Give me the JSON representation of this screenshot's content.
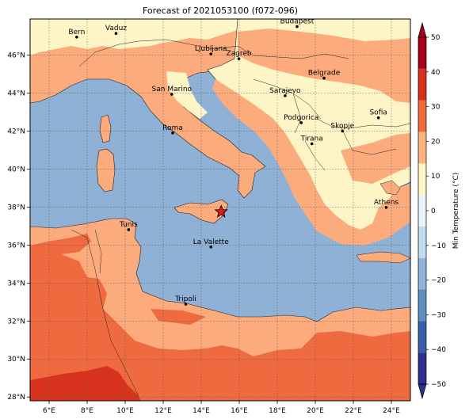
{
  "title": "Forecast of 2021053100 (f072-096)",
  "map": {
    "x_ticks": [
      "6°E",
      "8°E",
      "10°E",
      "12°E",
      "14°E",
      "16°E",
      "18°E",
      "20°E",
      "22°E",
      "24°E"
    ],
    "y_ticks": [
      "46°N",
      "44°N",
      "42°N",
      "40°N",
      "38°N",
      "36°N",
      "34°N",
      "32°N",
      "30°N",
      "28°N"
    ],
    "lon_range": [
      5,
      25
    ],
    "lat_range": [
      27.8,
      47.9
    ],
    "grid": true,
    "cities": [
      {
        "name": "Bern",
        "lon": 7.45,
        "lat": 46.95
      },
      {
        "name": "Vaduz",
        "lon": 9.52,
        "lat": 47.14
      },
      {
        "name": "Budapest",
        "lon": 19.04,
        "lat": 47.5
      },
      {
        "name": "Ljubljana",
        "lon": 14.51,
        "lat": 46.06
      },
      {
        "name": "Zagreb",
        "lon": 15.98,
        "lat": 45.81
      },
      {
        "name": "Belgrade",
        "lon": 20.46,
        "lat": 44.79
      },
      {
        "name": "San Marino",
        "lon": 12.45,
        "lat": 43.94
      },
      {
        "name": "Sarajevo",
        "lon": 18.41,
        "lat": 43.86
      },
      {
        "name": "Sofia",
        "lon": 23.32,
        "lat": 42.7
      },
      {
        "name": "Podgorica",
        "lon": 19.26,
        "lat": 42.44
      },
      {
        "name": "Skopje",
        "lon": 21.43,
        "lat": 42.0
      },
      {
        "name": "Roma",
        "lon": 12.5,
        "lat": 41.9
      },
      {
        "name": "Tirana",
        "lon": 19.82,
        "lat": 41.33
      },
      {
        "name": "Athens",
        "lon": 23.73,
        "lat": 37.98
      },
      {
        "name": "Tunis",
        "lon": 10.18,
        "lat": 36.81
      },
      {
        "name": "La Valette",
        "lon": 14.51,
        "lat": 35.9
      },
      {
        "name": "Tripoli",
        "lon": 13.19,
        "lat": 32.89
      }
    ],
    "marker": {
      "symbol": "star",
      "lon": 15.05,
      "lat": 37.75,
      "color": "#e41a1c"
    }
  },
  "colorbar": {
    "label": "Min Temperature (°C)",
    "ticks": [
      "50",
      "40",
      "30",
      "20",
      "10",
      "0",
      "−10",
      "−20",
      "−30",
      "−40",
      "−50"
    ],
    "range": [
      -50,
      50
    ],
    "extend": "both",
    "colors": [
      "#2b2f8f",
      "#3a5fa8",
      "#5f8fc0",
      "#8fb4d8",
      "#bfdcec",
      "#e8f4f8",
      "#fdf6c6",
      "#fdb27f",
      "#f06a3c",
      "#d7301f",
      "#a5001a"
    ]
  },
  "colors": {
    "sea": "#8fb1d6",
    "land_10_20": "#fdf5c6",
    "land_20_30": "#fcab7c",
    "land_30_40": "#ef6a3e",
    "land_40_50": "#d7331e"
  }
}
